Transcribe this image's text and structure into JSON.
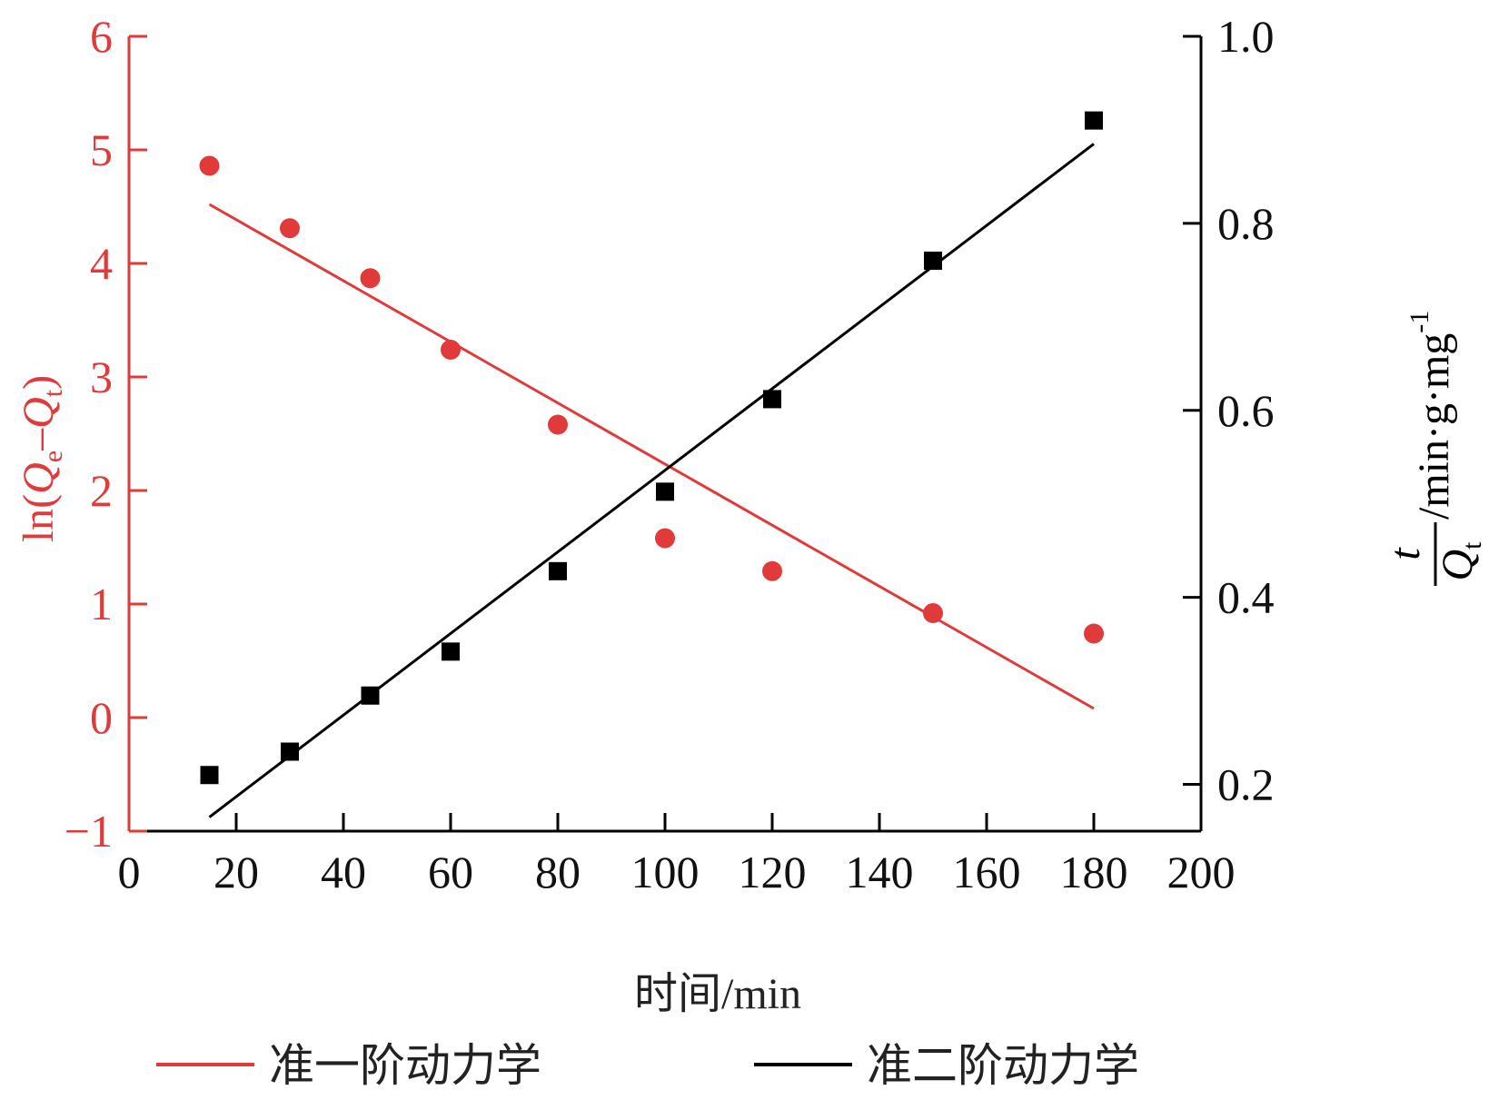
{
  "chart_data": {
    "type": "scatter",
    "x_axis": {
      "label": "时间/min",
      "ticks": [
        0,
        20,
        40,
        60,
        80,
        100,
        120,
        140,
        160,
        180,
        200
      ],
      "range": [
        0,
        200
      ]
    },
    "y_axis_left": {
      "label_main": "ln(",
      "label_q1": "Q",
      "label_sub1": "e",
      "label_minus": "–",
      "label_q2": "Q",
      "label_sub2": "t",
      "label_close": ")",
      "ticks": [
        -1,
        0,
        1,
        2,
        3,
        4,
        5,
        6
      ],
      "range": [
        -1,
        6
      ],
      "color": "#e03a3a"
    },
    "y_axis_right": {
      "label_numerator": "t",
      "label_denominator": "Q",
      "label_denominator_sub": "t",
      "label_units": "/min·g·mg",
      "label_units_sup": "-1",
      "ticks": [
        "0.2",
        "0.4",
        "0.6",
        "0.8",
        "1.0"
      ],
      "range": [
        0.15,
        1.0
      ],
      "color": "#000000"
    },
    "series": [
      {
        "name": "准一阶动力学",
        "axis": "left",
        "marker": "circle",
        "color": "#e03a3a",
        "x": [
          15,
          30,
          45,
          60,
          80,
          100,
          120,
          150,
          180
        ],
        "y": [
          4.86,
          4.31,
          3.87,
          3.24,
          2.58,
          1.58,
          1.29,
          0.92,
          0.74
        ],
        "fit": {
          "x": [
            15,
            180
          ],
          "y": [
            4.52,
            0.08
          ]
        }
      },
      {
        "name": "准二阶动力学",
        "axis": "right",
        "marker": "square",
        "color": "#000000",
        "x": [
          15,
          30,
          45,
          60,
          80,
          100,
          120,
          150,
          180
        ],
        "y": [
          0.21,
          0.235,
          0.295,
          0.342,
          0.428,
          0.513,
          0.612,
          0.76,
          0.91
        ],
        "fit": {
          "x": [
            15,
            180
          ],
          "y": [
            0.165,
            0.885
          ]
        }
      }
    ],
    "legend": {
      "placement": "bottom",
      "items": [
        {
          "label": "准一阶动力学",
          "color": "#e03a3a"
        },
        {
          "label": "准二阶动力学",
          "color": "#000000"
        }
      ]
    },
    "grid": false
  }
}
